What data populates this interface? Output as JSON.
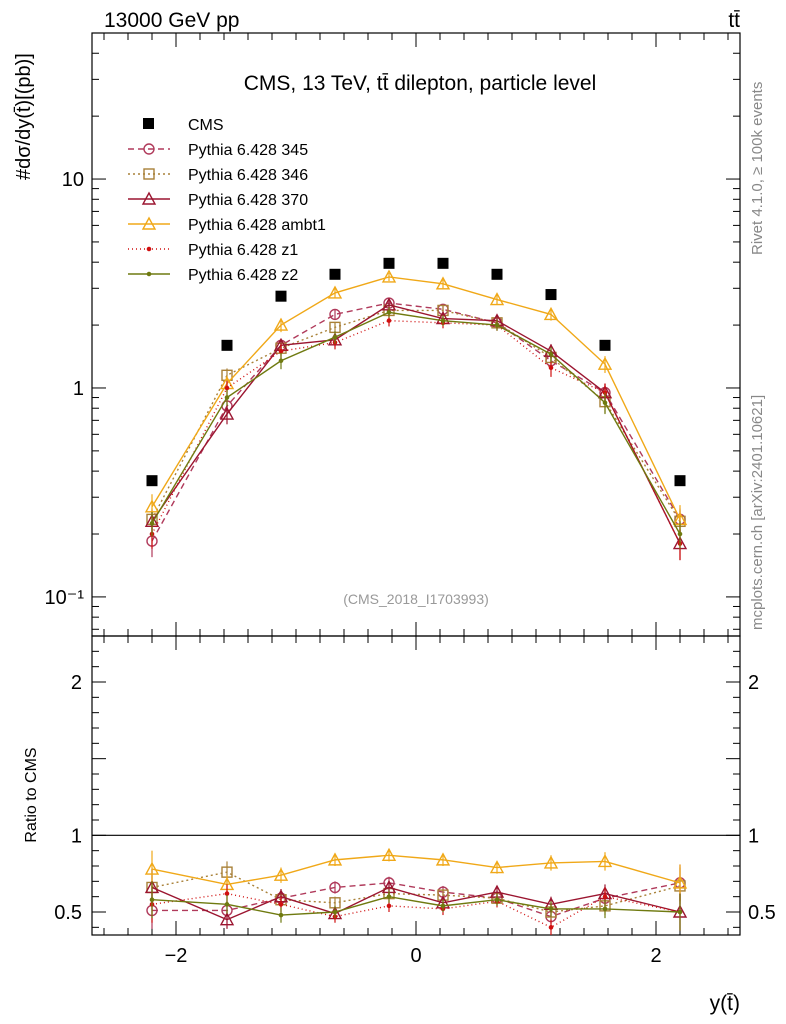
{
  "header": {
    "left": "13000 GeV pp",
    "right": "tt̄"
  },
  "side": {
    "rivet": "Rivet 4.1.0, ≥ 100k events",
    "mcplots": "mcplots.cern.ch [arXiv:2401.10621]"
  },
  "chart_data": {
    "type": "line",
    "title": "CMS, 13 TeV, tt̄ dilepton, particle level",
    "reference": "(CMS_2018_I1703993)",
    "xlabel": "y(t̄)",
    "ylabel": "#dσ/dy(t̄)[(pb)]",
    "ratio_ylabel": "Ratio to CMS",
    "xlim": [
      -2.7,
      2.7
    ],
    "ylim": [
      0.065,
      50
    ],
    "ylog": true,
    "ratio_ylim": [
      0.35,
      2.3
    ],
    "x_ticks": [
      -2,
      0,
      2
    ],
    "x_tick_labels": [
      "−2",
      "0",
      "2"
    ],
    "y_ticks": [
      0.1,
      1,
      10
    ],
    "y_tick_labels": [
      "10⁻¹",
      "1",
      "10"
    ],
    "ratio_ticks": [
      0.5,
      1,
      2
    ],
    "ratio_tick_labels": [
      "0.5",
      "1",
      "2"
    ],
    "x": [
      -2.2,
      -1.575,
      -1.125,
      -0.675,
      -0.225,
      0.225,
      0.675,
      1.125,
      1.575,
      2.2
    ],
    "data": {
      "name": "CMS",
      "values": [
        0.36,
        1.6,
        2.75,
        3.5,
        3.95,
        3.95,
        3.5,
        2.8,
        1.6,
        0.36
      ]
    },
    "series": [
      {
        "name": "Pythia 6.428 345",
        "color": "#b03a5b",
        "dash": "6,4",
        "marker": "circle",
        "values": [
          0.185,
          0.82,
          1.6,
          2.25,
          2.55,
          2.38,
          2.05,
          1.35,
          0.95,
          0.235
        ],
        "errors": [
          0.03,
          0.08,
          0.12,
          0.12,
          0.13,
          0.12,
          0.12,
          0.12,
          0.1,
          0.03
        ],
        "ratio": [
          0.51,
          0.51,
          0.59,
          0.66,
          0.69,
          0.63,
          0.59,
          0.47,
          0.59,
          0.69
        ],
        "ratio_err": [
          0.12,
          0.06,
          0.05,
          0.04,
          0.04,
          0.04,
          0.04,
          0.05,
          0.06,
          0.12
        ]
      },
      {
        "name": "Pythia 6.428 346",
        "color": "#a98138",
        "dash": "2,3",
        "marker": "square",
        "values": [
          0.235,
          1.15,
          1.55,
          1.95,
          2.35,
          2.35,
          2.05,
          1.4,
          0.86,
          0.23
        ],
        "errors": [
          0.03,
          0.09,
          0.12,
          0.12,
          0.13,
          0.12,
          0.12,
          0.12,
          0.1,
          0.03
        ],
        "ratio": [
          0.66,
          0.76,
          0.58,
          0.56,
          0.62,
          0.61,
          0.59,
          0.5,
          0.54,
          0.67
        ],
        "ratio_err": [
          0.12,
          0.07,
          0.05,
          0.04,
          0.04,
          0.04,
          0.04,
          0.05,
          0.06,
          0.12
        ]
      },
      {
        "name": "Pythia 6.428 370",
        "color": "#9b1530",
        "dash": "",
        "marker": "triangle",
        "values": [
          0.23,
          0.75,
          1.6,
          1.7,
          2.5,
          2.15,
          2.1,
          1.5,
          0.95,
          0.18
        ],
        "errors": [
          0.03,
          0.08,
          0.12,
          0.12,
          0.13,
          0.12,
          0.12,
          0.12,
          0.1,
          0.03
        ],
        "ratio": [
          0.66,
          0.45,
          0.6,
          0.49,
          0.66,
          0.56,
          0.63,
          0.55,
          0.62,
          0.5
        ],
        "ratio_err": [
          0.12,
          0.06,
          0.05,
          0.04,
          0.04,
          0.04,
          0.04,
          0.05,
          0.06,
          0.12
        ]
      },
      {
        "name": "Pythia 6.428 ambt1",
        "color": "#f0a818",
        "dash": "",
        "marker": "triangle",
        "values": [
          0.27,
          1.05,
          2.0,
          2.85,
          3.4,
          3.15,
          2.65,
          2.25,
          1.3,
          0.235
        ],
        "errors": [
          0.04,
          0.09,
          0.15,
          0.15,
          0.15,
          0.15,
          0.15,
          0.15,
          0.12,
          0.04
        ],
        "ratio": [
          0.78,
          0.68,
          0.74,
          0.84,
          0.87,
          0.84,
          0.79,
          0.82,
          0.83,
          0.69
        ],
        "ratio_err": [
          0.12,
          0.06,
          0.05,
          0.04,
          0.04,
          0.04,
          0.04,
          0.05,
          0.06,
          0.12
        ]
      },
      {
        "name": "Pythia 6.428 z1",
        "color": "#d01010",
        "dash": "1,3",
        "marker": "dot",
        "values": [
          0.2,
          1.0,
          1.5,
          1.65,
          2.1,
          2.05,
          2.0,
          1.25,
          0.95,
          0.18
        ],
        "errors": [
          0.03,
          0.08,
          0.12,
          0.12,
          0.13,
          0.12,
          0.12,
          0.12,
          0.1,
          0.03
        ],
        "ratio": [
          0.55,
          0.62,
          0.55,
          0.47,
          0.54,
          0.52,
          0.57,
          0.4,
          0.6,
          0.5
        ],
        "ratio_err": [
          0.12,
          0.06,
          0.05,
          0.04,
          0.04,
          0.04,
          0.04,
          0.05,
          0.06,
          0.12
        ]
      },
      {
        "name": "Pythia 6.428 z2",
        "color": "#6f7a10",
        "dash": "",
        "marker": "dot",
        "values": [
          0.225,
          0.9,
          1.35,
          1.75,
          2.3,
          2.1,
          2.0,
          1.45,
          0.85,
          0.2
        ],
        "errors": [
          0.03,
          0.08,
          0.12,
          0.12,
          0.13,
          0.12,
          0.12,
          0.12,
          0.1,
          0.03
        ],
        "ratio": [
          0.58,
          0.55,
          0.48,
          0.5,
          0.6,
          0.54,
          0.58,
          0.52,
          0.52,
          0.5
        ],
        "ratio_err": [
          0.12,
          0.06,
          0.05,
          0.04,
          0.04,
          0.04,
          0.04,
          0.05,
          0.06,
          0.12
        ]
      }
    ]
  }
}
